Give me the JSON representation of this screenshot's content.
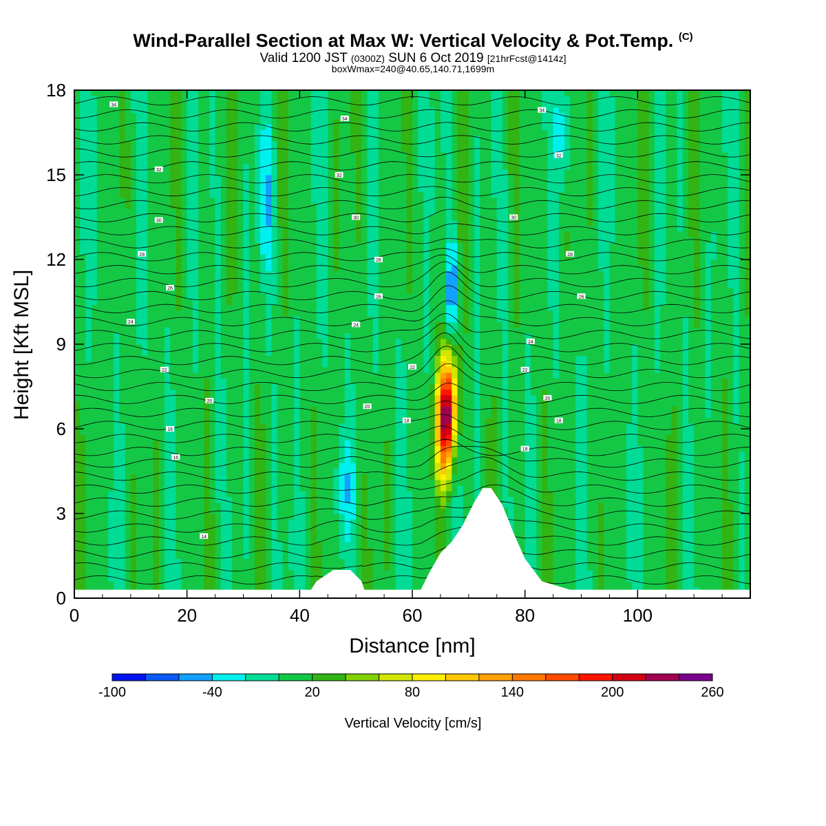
{
  "header": {
    "title": "Wind-Parallel Section at Max W: Vertical Velocity & Pot.Temp.",
    "copyright_mark": "(C)",
    "valid_prefix": "Valid 1200 JST",
    "valid_zulu": "(0300Z)",
    "valid_date": "SUN 6 Oct 2019",
    "forecast_info": "[21hrFcst@1414z]",
    "box_info": "boxWmax=240@40.65,140.71,1699m"
  },
  "chart_data": {
    "type": "heatmap",
    "xlabel": "Distance [nm]",
    "ylabel": "Height [Kft MSL]",
    "xlim": [
      0,
      120
    ],
    "ylim": [
      0,
      18
    ],
    "x_ticks": [
      0,
      20,
      40,
      60,
      80,
      100
    ],
    "y_ticks": [
      0,
      3,
      6,
      9,
      12,
      15,
      18
    ],
    "colorbar": {
      "label": "Vertical Velocity [cm/s]",
      "levels": [
        -100,
        -80,
        -60,
        -40,
        -20,
        0,
        20,
        40,
        60,
        80,
        100,
        120,
        140,
        160,
        180,
        200,
        220,
        240,
        260
      ],
      "tick_labels": [
        "-100",
        "-40",
        "20",
        "80",
        "140",
        "200",
        "260"
      ],
      "colors": [
        "#0014f0",
        "#0a5af5",
        "#14a0ff",
        "#00f0f0",
        "#00dc96",
        "#14c846",
        "#32b414",
        "#82d200",
        "#d2e600",
        "#fff000",
        "#ffc800",
        "#ffa000",
        "#ff7800",
        "#ff4b00",
        "#ff1400",
        "#d20014",
        "#a00050",
        "#78008c"
      ]
    },
    "terrain": [
      {
        "x": 0,
        "h": 0.3
      },
      {
        "x": 42,
        "h": 0.3
      },
      {
        "x": 43,
        "h": 0.6
      },
      {
        "x": 46,
        "h": 1.0
      },
      {
        "x": 49,
        "h": 1.0
      },
      {
        "x": 51,
        "h": 0.6
      },
      {
        "x": 51.5,
        "h": 0.3
      },
      {
        "x": 61.5,
        "h": 0.3
      },
      {
        "x": 63,
        "h": 0.9
      },
      {
        "x": 65,
        "h": 1.6
      },
      {
        "x": 67,
        "h": 2.0
      },
      {
        "x": 69,
        "h": 2.6
      },
      {
        "x": 71,
        "h": 3.4
      },
      {
        "x": 72.5,
        "h": 3.9
      },
      {
        "x": 74,
        "h": 3.9
      },
      {
        "x": 76,
        "h": 3.3
      },
      {
        "x": 78,
        "h": 2.3
      },
      {
        "x": 80,
        "h": 1.4
      },
      {
        "x": 83,
        "h": 0.6
      },
      {
        "x": 88,
        "h": 0.3
      },
      {
        "x": 120,
        "h": 0.3
      }
    ],
    "contour_labels": [
      "14",
      "16",
      "18",
      "20",
      "22",
      "24",
      "26",
      "28",
      "30",
      "32",
      "34"
    ],
    "max_w_location": {
      "x": 66,
      "height": 6.5,
      "value": 240
    }
  }
}
